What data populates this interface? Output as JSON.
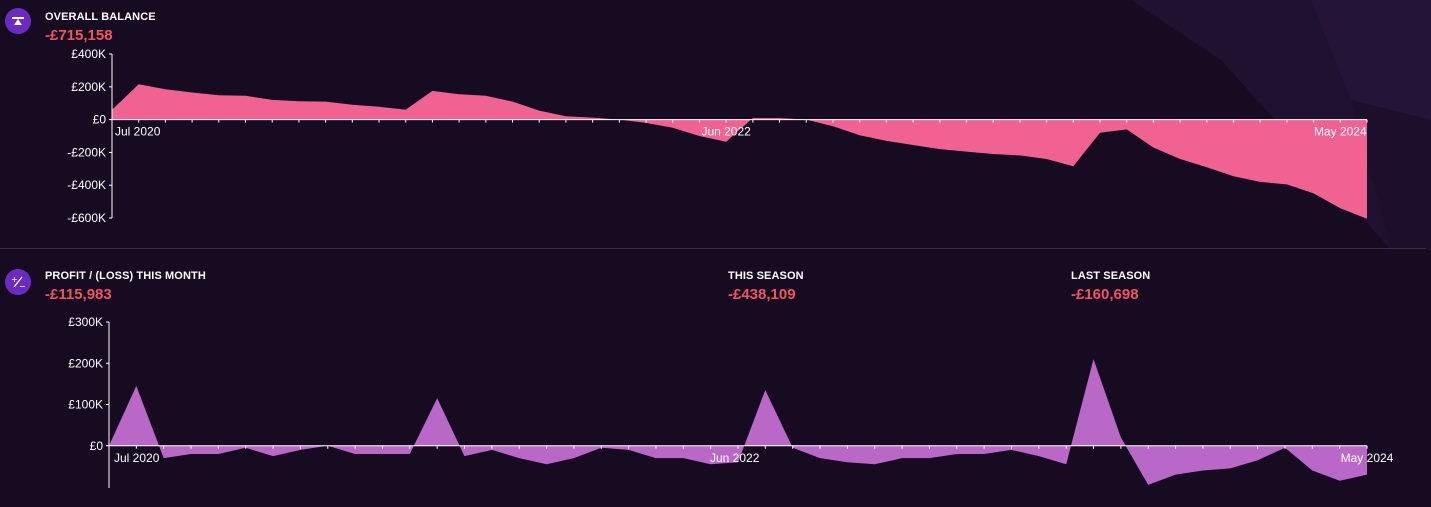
{
  "colors": {
    "background": "#170b22",
    "balance_fill": "#f06292",
    "profit_fill": "#ba68c8",
    "negative_value": "#f0545e",
    "icon_bg": "#6b2bc2"
  },
  "balance_section": {
    "icon": "seesaw-balance-icon",
    "label": "OVERALL BALANCE",
    "value": "-£715,158"
  },
  "profit_section": {
    "icon": "plus-minus-icon",
    "label": "PROFIT / (LOSS) THIS MONTH",
    "value": "-£115,983"
  },
  "this_season": {
    "label": "THIS SEASON",
    "value": "-£438,109"
  },
  "last_season": {
    "label": "LAST SEASON",
    "value": "-£160,698"
  },
  "chart_data": [
    {
      "type": "area",
      "ylim": [
        -600000,
        400000
      ],
      "y_ticks": [
        400000,
        200000,
        0,
        -200000,
        -400000,
        -600000
      ],
      "y_tick_labels": [
        "£400K",
        "£200K",
        "£0",
        "-£200K",
        "-£400K",
        "-£600K"
      ],
      "x_tick_labels": [
        {
          "index": 0,
          "label": "Jul 2020"
        },
        {
          "index": 23,
          "label": "Jun 2022"
        },
        {
          "index": 46,
          "label": "May 2024"
        }
      ],
      "grid": false,
      "values": [
        60000,
        215000,
        185000,
        165000,
        148000,
        145000,
        120000,
        112000,
        110000,
        90000,
        78000,
        60000,
        175000,
        155000,
        145000,
        110000,
        55000,
        20000,
        12000,
        0,
        -20000,
        -50000,
        -100000,
        -135000,
        10000,
        10000,
        0,
        -40000,
        -95000,
        -130000,
        -155000,
        -180000,
        -195000,
        -210000,
        -218000,
        -240000,
        -285000,
        -80000,
        -60000,
        -170000,
        -240000,
        -290000,
        -345000,
        -380000,
        -395000,
        -450000,
        -540000,
        -605000
      ]
    },
    {
      "type": "area",
      "ylim": [
        -100000,
        300000
      ],
      "y_ticks": [
        300000,
        200000,
        100000,
        0
      ],
      "y_tick_labels": [
        "£300K",
        "£200K",
        "£100K",
        "£0"
      ],
      "x_tick_labels": [
        {
          "index": 0,
          "label": "Jul 2020"
        },
        {
          "index": 23,
          "label": "Jun 2022"
        },
        {
          "index": 46,
          "label": "May 2024"
        }
      ],
      "grid": false,
      "values": [
        0,
        145000,
        -30000,
        -20000,
        -20000,
        -5000,
        -25000,
        -10000,
        0,
        -20000,
        -20000,
        -20000,
        115000,
        -25000,
        -10000,
        -30000,
        -45000,
        -30000,
        -5000,
        -10000,
        -30000,
        -30000,
        -45000,
        -40000,
        135000,
        -5000,
        -30000,
        -40000,
        -45000,
        -30000,
        -30000,
        -20000,
        -20000,
        -10000,
        -25000,
        -45000,
        210000,
        20000,
        -95000,
        -70000,
        -60000,
        -55000,
        -35000,
        -5000,
        -60000,
        -85000,
        -70000
      ]
    }
  ]
}
